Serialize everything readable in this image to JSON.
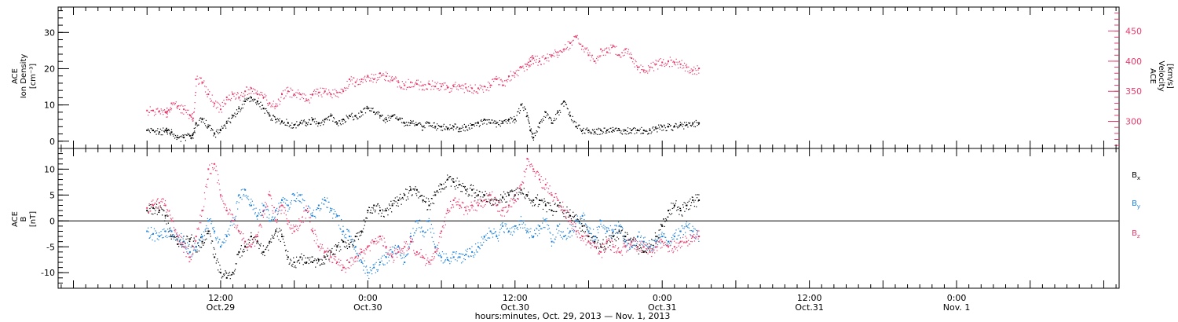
{
  "colors": {
    "black": "#000000",
    "blue": "#1a7fd8",
    "pink": "#e8386a"
  },
  "chart_data": [
    {
      "type": "scatter",
      "panel": "top",
      "y_left": {
        "label_lines": [
          "ACE",
          "Ion Density",
          "[cm⁻³]"
        ],
        "ylim": [
          -2,
          37
        ],
        "ticks": [
          0,
          10,
          20,
          30
        ],
        "ticklabels": [
          "0",
          "10",
          "20",
          "30"
        ]
      },
      "y_right": {
        "label_lines": [
          "ACE",
          "Velocity",
          "[km/s]"
        ],
        "ylim": [
          255,
          490
        ],
        "ticks": [
          300,
          350,
          400,
          450
        ],
        "ticklabels": [
          "300",
          "350",
          "400",
          "450"
        ],
        "color": "#e8386a"
      },
      "series": [
        {
          "key": "density",
          "axis": "left",
          "color": "#000000",
          "x": [
            0.0,
            1.0,
            2.0,
            3.0,
            3.3,
            4.0,
            5.0,
            6.0,
            7.0,
            7.5,
            8.0,
            9.0,
            10.0,
            11.0,
            12.0,
            13.0,
            14.0,
            15.0,
            16.0,
            17.0,
            18.0,
            19.0,
            20.0,
            21.0,
            22.0,
            23.0,
            24.0,
            25.0,
            26.0,
            27.0,
            28.0,
            29.0,
            30.0,
            31.0,
            32.0,
            33.0,
            34.0,
            35.0,
            36.0,
            37.0,
            38.0,
            39.0,
            40.0,
            41.0,
            42.0,
            43.0,
            44.0,
            45.0,
            46.0,
            47.0,
            48.0,
            49.0,
            50.0,
            51.0,
            52.0,
            53.0,
            54.0,
            55.0,
            56.0,
            57.0,
            58.0,
            59.0,
            60.0,
            61.0,
            62.0,
            62.5,
            63.0,
            64.0,
            65.0,
            66.0,
            67.0,
            68.0,
            69.0,
            70.0,
            71.0,
            72.0,
            73.0,
            74.0,
            75.0,
            76.0,
            77.0,
            78.0,
            79.0,
            80.0,
            81.0,
            82.0,
            83.0,
            84.0,
            85.0,
            86.0,
            87.0,
            88.0,
            89.0,
            90.0
          ],
          "y": [
            3,
            3,
            2.5,
            3,
            3,
            2.5,
            1,
            1,
            1.5,
            2,
            5,
            6,
            4,
            2,
            3,
            5,
            7,
            9,
            11,
            12,
            11,
            9,
            7,
            6,
            5.5,
            5,
            4.5,
            5,
            5,
            6,
            5,
            6,
            7,
            5,
            6,
            7,
            7,
            8,
            9,
            8,
            7,
            6,
            7,
            6,
            5,
            5,
            4.5,
            4,
            5,
            4,
            4,
            3.5,
            4,
            3.5,
            4,
            4.5,
            5,
            6,
            5,
            5,
            5,
            6,
            6,
            10,
            7,
            3,
            1,
            5,
            8,
            5,
            8,
            11,
            7,
            4,
            3,
            3,
            2.5,
            3,
            3,
            3,
            3,
            3,
            3,
            3,
            3,
            3,
            3.5,
            4,
            4,
            4,
            4.5,
            4.5,
            5,
            5
          ]
        },
        {
          "key": "velocity",
          "axis": "right",
          "color": "#e8386a",
          "x": [
            0.0,
            1.0,
            2.0,
            3.0,
            3.3,
            4.0,
            5.0,
            6.0,
            7.0,
            7.5,
            8.0,
            9.0,
            10.0,
            11.0,
            12.0,
            13.0,
            14.0,
            15.0,
            16.0,
            17.0,
            18.0,
            19.0,
            20.0,
            21.0,
            22.0,
            23.0,
            24.0,
            25.0,
            26.0,
            27.0,
            28.0,
            29.0,
            30.0,
            31.0,
            32.0,
            33.0,
            34.0,
            35.0,
            36.0,
            37.0,
            38.0,
            39.0,
            40.0,
            41.0,
            42.0,
            43.0,
            44.0,
            45.0,
            46.0,
            47.0,
            48.0,
            49.0,
            50.0,
            51.0,
            52.0,
            53.0,
            54.0,
            55.0,
            56.0,
            57.0,
            58.0,
            59.0,
            60.0,
            61.0,
            62.0,
            62.5,
            63.0,
            64.0,
            65.0,
            66.0,
            67.0,
            68.0,
            69.0,
            70.0,
            71.0,
            72.0,
            73.0,
            74.0,
            75.0,
            76.0,
            77.0,
            78.0,
            79.0,
            80.0,
            81.0,
            82.0,
            83.0,
            84.0,
            85.0,
            86.0,
            87.0,
            88.0,
            89.0,
            90.0
          ],
          "y": [
            318,
            318,
            317,
            315,
            316,
            330,
            325,
            320,
            310,
            305,
            370,
            365,
            345,
            330,
            320,
            340,
            345,
            340,
            350,
            355,
            345,
            340,
            330,
            325,
            345,
            350,
            345,
            345,
            335,
            345,
            348,
            350,
            345,
            348,
            350,
            370,
            365,
            370,
            375,
            370,
            380,
            375,
            368,
            365,
            360,
            365,
            362,
            360,
            362,
            358,
            358,
            356,
            358,
            358,
            356,
            355,
            355,
            358,
            360,
            370,
            360,
            375,
            380,
            390,
            395,
            400,
            405,
            400,
            405,
            410,
            415,
            420,
            430,
            440,
            425,
            410,
            400,
            420,
            415,
            425,
            410,
            420,
            405,
            390,
            385,
            390,
            395,
            398,
            400,
            398,
            395,
            390,
            385,
            388
          ]
        }
      ]
    },
    {
      "type": "scatter",
      "panel": "bottom",
      "y_left": {
        "label_lines": [
          "ACE",
          "B",
          "[nT]"
        ],
        "ylim": [
          -13,
          14
        ],
        "ticks": [
          -10,
          -5,
          0,
          5,
          10
        ],
        "ticklabels": [
          "-10",
          "-5",
          "0",
          "5",
          "10"
        ]
      },
      "legend": [
        {
          "base": "B",
          "sub": "x",
          "color": "#000000"
        },
        {
          "base": "B",
          "sub": "y",
          "color": "#1a7fd8"
        },
        {
          "base": "B",
          "sub": "z",
          "color": "#e8386a"
        }
      ],
      "series": [
        {
          "key": "Bx",
          "color": "#000000",
          "x": [
            0.0,
            1.0,
            2.0,
            3.0,
            4.0,
            5.0,
            6.0,
            7.0,
            8.0,
            9.0,
            10.0,
            11.0,
            12.0,
            13.0,
            14.0,
            15.0,
            16.0,
            17.0,
            18.0,
            19.0,
            20.0,
            21.0,
            22.0,
            23.0,
            24.0,
            25.0,
            26.0,
            27.0,
            28.0,
            29.0,
            30.0,
            31.0,
            32.0,
            33.0,
            34.0,
            35.0,
            36.0,
            37.0,
            38.0,
            39.0,
            40.0,
            41.0,
            42.0,
            43.0,
            44.0,
            45.0,
            46.0,
            47.0,
            48.0,
            49.0,
            50.0,
            51.0,
            52.0,
            53.0,
            54.0,
            55.0,
            56.0,
            57.0,
            58.0,
            59.0,
            60.0,
            61.0,
            62.0,
            63.0,
            64.0,
            65.0,
            66.0,
            67.0,
            68.0,
            69.0,
            70.0,
            71.0,
            72.0,
            73.0,
            74.0,
            75.0,
            76.0,
            77.0,
            78.0,
            79.0,
            80.0,
            81.0,
            82.0,
            83.0,
            84.0,
            85.0,
            86.0,
            87.0,
            88.0,
            89.0,
            90.0
          ],
          "y": [
            2,
            2.5,
            2,
            1,
            -3,
            -4.5,
            -4,
            -3.5,
            -5,
            -4,
            -2,
            -7,
            -10,
            -11,
            -10,
            -6,
            -5,
            -3,
            -4,
            -6,
            -4,
            -2,
            -3,
            -7,
            -8,
            -7,
            -8,
            -8,
            -7.5,
            -7,
            -6,
            -5,
            -4,
            -5,
            -3,
            -2,
            2,
            3,
            2,
            2,
            3,
            4,
            5,
            6,
            6,
            4,
            3,
            5,
            7,
            8,
            7.5,
            7,
            6,
            6,
            5,
            5,
            4,
            4,
            4.5,
            5,
            5,
            6,
            5,
            4,
            4,
            3,
            2,
            3,
            2,
            1,
            0,
            -1,
            -3,
            -4,
            -5,
            -4,
            -3,
            -2,
            -3,
            -4,
            -5,
            -6,
            -5,
            -3,
            -1,
            2,
            3,
            2,
            3,
            4,
            4
          ]
        },
        {
          "key": "By",
          "color": "#1a7fd8",
          "x": [
            0.0,
            1.0,
            2.0,
            3.0,
            4.0,
            5.0,
            6.0,
            7.0,
            8.0,
            9.0,
            10.0,
            11.0,
            12.0,
            13.0,
            14.0,
            15.0,
            16.0,
            17.0,
            18.0,
            19.0,
            20.0,
            21.0,
            22.0,
            23.0,
            24.0,
            25.0,
            26.0,
            27.0,
            28.0,
            29.0,
            30.0,
            31.0,
            32.0,
            33.0,
            34.0,
            35.0,
            36.0,
            37.0,
            38.0,
            39.0,
            40.0,
            41.0,
            42.0,
            43.0,
            44.0,
            45.0,
            46.0,
            47.0,
            48.0,
            49.0,
            50.0,
            51.0,
            52.0,
            53.0,
            54.0,
            55.0,
            56.0,
            57.0,
            58.0,
            59.0,
            60.0,
            61.0,
            62.0,
            63.0,
            64.0,
            65.0,
            66.0,
            67.0,
            68.0,
            69.0,
            70.0,
            71.0,
            72.0,
            73.0,
            74.0,
            75.0,
            76.0,
            77.0,
            78.0,
            79.0,
            80.0,
            81.0,
            82.0,
            83.0,
            84.0,
            85.0,
            86.0,
            87.0,
            88.0,
            89.0,
            90.0
          ],
          "y": [
            -2,
            -2.5,
            -3,
            -2,
            -2,
            -3,
            -4,
            -6,
            -5,
            -3,
            0,
            -2,
            -5,
            -3,
            0,
            5,
            6,
            3,
            1,
            3,
            0,
            2,
            4,
            3,
            5,
            5,
            2,
            1,
            3,
            4,
            2,
            1,
            -2,
            -3,
            -5,
            -8,
            -10,
            -9,
            -8,
            -7,
            -6,
            -5,
            -8,
            -3,
            0,
            -2,
            0,
            -5,
            -7,
            -7.5,
            -7,
            -7,
            -6.5,
            -6,
            -5,
            -3,
            -2,
            -3,
            -1,
            -2,
            -1,
            0,
            -2,
            -3,
            -1,
            0,
            -4,
            -1,
            -3,
            -2,
            0,
            1,
            -2,
            -3,
            0,
            -2,
            -2,
            -1,
            -4,
            -5,
            -3,
            -4,
            -5,
            -4,
            -3,
            -4,
            -3,
            -2,
            -1,
            -2,
            -3
          ]
        },
        {
          "key": "Bz",
          "color": "#e8386a",
          "x": [
            0.0,
            1.0,
            2.0,
            3.0,
            4.0,
            5.0,
            6.0,
            7.0,
            8.0,
            9.0,
            10.0,
            11.0,
            12.0,
            13.0,
            14.0,
            15.0,
            16.0,
            17.0,
            18.0,
            19.0,
            20.0,
            21.0,
            22.0,
            23.0,
            24.0,
            25.0,
            26.0,
            27.0,
            28.0,
            29.0,
            30.0,
            31.0,
            32.0,
            33.0,
            34.0,
            35.0,
            36.0,
            37.0,
            38.0,
            39.0,
            40.0,
            41.0,
            42.0,
            43.0,
            44.0,
            45.0,
            46.0,
            47.0,
            48.0,
            49.0,
            50.0,
            51.0,
            52.0,
            53.0,
            54.0,
            55.0,
            56.0,
            57.0,
            58.0,
            59.0,
            60.0,
            61.0,
            62.0,
            63.0,
            64.0,
            65.0,
            66.0,
            67.0,
            68.0,
            69.0,
            70.0,
            71.0,
            72.0,
            73.0,
            74.0,
            75.0,
            76.0,
            77.0,
            78.0,
            79.0,
            80.0,
            81.0,
            82.0,
            83.0,
            84.0,
            85.0,
            86.0,
            87.0,
            88.0,
            89.0,
            90.0
          ],
          "y": [
            2.5,
            3,
            3.5,
            3,
            0,
            -3,
            -5,
            -7,
            -3,
            2,
            10,
            11,
            5,
            2,
            0,
            -2,
            -4,
            -5,
            -3,
            2,
            5,
            0,
            3,
            0,
            -2,
            0,
            2,
            -2,
            -5,
            -6,
            -7,
            -8,
            -9,
            -8,
            -7,
            -6,
            -5,
            -4,
            -3,
            -5,
            -7,
            -6,
            -5,
            -4,
            -6,
            -7,
            -8,
            -6,
            -2,
            2,
            4,
            3,
            2,
            3,
            3,
            4,
            5,
            3,
            2,
            3,
            4,
            7,
            12,
            10,
            8,
            7,
            5,
            4,
            2,
            0,
            -2,
            -3,
            -4,
            -5,
            -6,
            -4,
            -5,
            -6,
            -5,
            -4,
            -5,
            -5,
            -6,
            -5,
            -4,
            -5,
            -5,
            -4,
            -4,
            -3,
            -3
          ]
        }
      ]
    }
  ],
  "x_axis": {
    "ticks": [
      {
        "x": 12,
        "time": "12:00",
        "day": "Oct.29"
      },
      {
        "x": 36,
        "time": "0:00",
        "day": "Oct.30"
      },
      {
        "x": 60,
        "time": "12:00",
        "day": "Oct.30"
      },
      {
        "x": 84,
        "time": "0:00",
        "day": "Oct.31"
      },
      {
        "x": 108,
        "time": "12:00",
        "day": "Oct.31"
      },
      {
        "x": 132,
        "time": "0:00",
        "day": "Nov. 1"
      }
    ],
    "xlim": [
      -14.5,
      158.5
    ],
    "minor_step": 2,
    "title": "hours:minutes, Oct. 29, 2013 — Nov.  1, 2013"
  }
}
